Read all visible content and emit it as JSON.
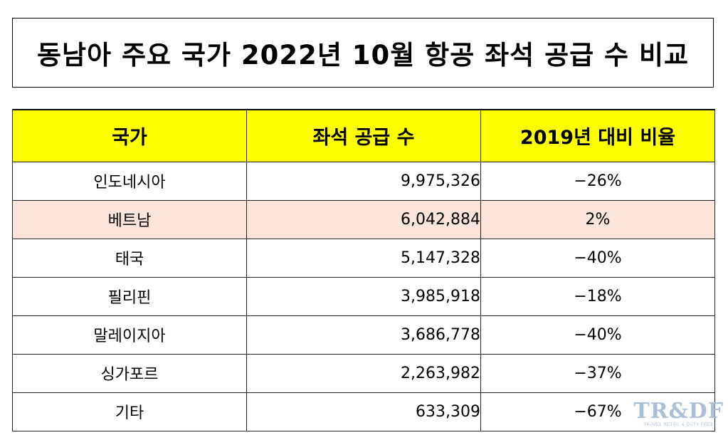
{
  "title": "동남아 주요 국가 2022년 10월 항공 좌석 공급 수 비교",
  "table": {
    "headers": [
      "국가",
      "좌석 공급 수",
      "2019년 대비 비율"
    ],
    "header_color": "#ffff00",
    "highlight_color": "#fbe4d9",
    "rows": [
      {
        "country": "인도네시아",
        "seats": "9,975,326",
        "ratio": "−26%",
        "highlight": false
      },
      {
        "country": "베트남",
        "seats": "6,042,884",
        "ratio": "2%",
        "highlight": true
      },
      {
        "country": "태국",
        "seats": "5,147,328",
        "ratio": "−40%",
        "highlight": false
      },
      {
        "country": "필리핀",
        "seats": "3,985,918",
        "ratio": "−18%",
        "highlight": false
      },
      {
        "country": "말레이지아",
        "seats": "3,686,778",
        "ratio": "−40%",
        "highlight": false
      },
      {
        "country": "싱가포르",
        "seats": "2,263,982",
        "ratio": "−37%",
        "highlight": false
      },
      {
        "country": "기타",
        "seats": "633,309",
        "ratio": "−67%",
        "highlight": false
      }
    ]
  },
  "watermark": {
    "logo": "TR&DF",
    "tagline": "TRAVEL RETAIL & DUTY FREE"
  }
}
